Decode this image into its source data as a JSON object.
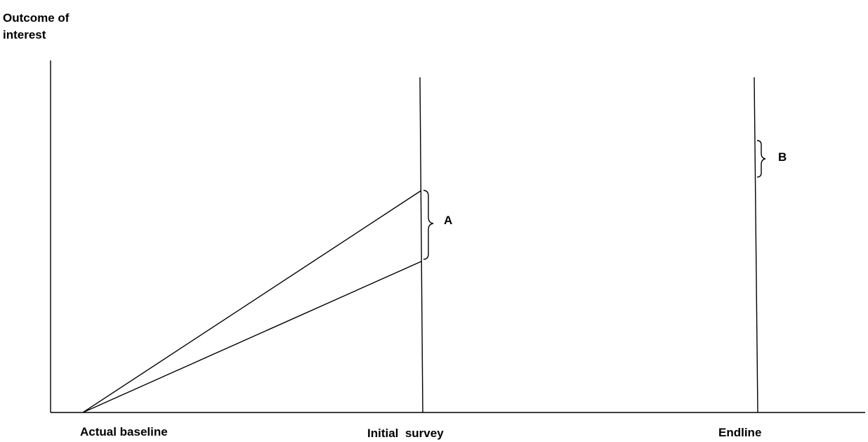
{
  "y_axis_title_line1": "Outcome of",
  "y_axis_title_line2": "interest",
  "x_labels": {
    "actual_baseline": "Actual baseline",
    "initial_survey": "Initial  survey",
    "endline": "Endline"
  },
  "brace_labels": {
    "a": "A",
    "b": "B"
  },
  "colors": {
    "line": "#000000",
    "background": "#ffffff"
  }
}
